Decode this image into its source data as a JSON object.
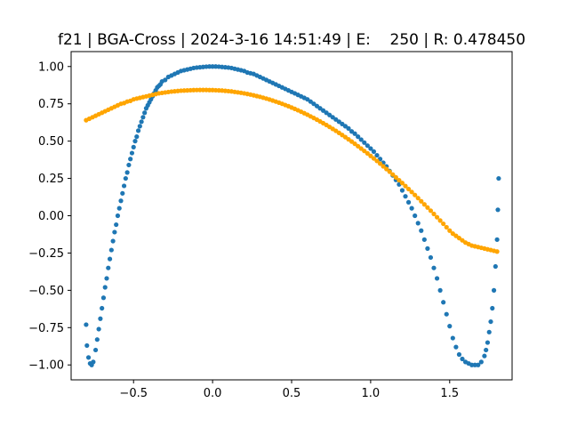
{
  "chart_data": {
    "type": "scatter",
    "title": "f21 | BGA-Cross | 2024-3-16 14:51:49 | E:    250 | R: 0.478450",
    "xlabel": "",
    "ylabel": "",
    "xlim": [
      -0.895,
      1.895
    ],
    "ylim": [
      -1.1,
      1.1
    ],
    "grid": false,
    "legend": "none",
    "x_ticks": [
      -0.5,
      0.0,
      0.5,
      1.0,
      1.5
    ],
    "x_tick_labels": [
      "−0.5",
      "0.0",
      "0.5",
      "1.0",
      "1.5"
    ],
    "y_ticks": [
      -1.0,
      -0.75,
      -0.5,
      -0.25,
      0.0,
      0.25,
      0.5,
      0.75,
      1.0
    ],
    "y_tick_labels": [
      "−1.00",
      "−0.75",
      "−0.50",
      "−0.25",
      "0.00",
      "0.25",
      "0.50",
      "0.75",
      "1.00"
    ],
    "series": [
      {
        "color": "#1f77b4",
        "marker": "dot",
        "points": [
          [
            -0.8,
            -0.73
          ],
          [
            -0.795,
            -0.87
          ],
          [
            -0.785,
            -0.95
          ],
          [
            -0.775,
            -0.99
          ],
          [
            -0.765,
            -1.0
          ],
          [
            -0.755,
            -0.98
          ],
          [
            -0.74,
            -0.9
          ],
          [
            -0.73,
            -0.83
          ],
          [
            -0.72,
            -0.76
          ],
          [
            -0.71,
            -0.69
          ],
          [
            -0.7,
            -0.62
          ],
          [
            -0.69,
            -0.55
          ],
          [
            -0.68,
            -0.48
          ],
          [
            -0.67,
            -0.42
          ],
          [
            -0.66,
            -0.35
          ],
          [
            -0.65,
            -0.29
          ],
          [
            -0.64,
            -0.23
          ],
          [
            -0.63,
            -0.17
          ],
          [
            -0.62,
            -0.11
          ],
          [
            -0.61,
            -0.06
          ],
          [
            -0.6,
            0.0
          ],
          [
            -0.59,
            0.05
          ],
          [
            -0.58,
            0.1
          ],
          [
            -0.57,
            0.15
          ],
          [
            -0.56,
            0.2
          ],
          [
            -0.55,
            0.25
          ],
          [
            -0.54,
            0.29
          ],
          [
            -0.53,
            0.34
          ],
          [
            -0.52,
            0.38
          ],
          [
            -0.51,
            0.42
          ],
          [
            -0.5,
            0.46
          ],
          [
            -0.49,
            0.5
          ],
          [
            -0.48,
            0.53
          ],
          [
            -0.47,
            0.57
          ],
          [
            -0.46,
            0.6
          ],
          [
            -0.45,
            0.63
          ],
          [
            -0.44,
            0.66
          ],
          [
            -0.43,
            0.69
          ],
          [
            -0.42,
            0.72
          ],
          [
            -0.41,
            0.74
          ],
          [
            -0.4,
            0.76
          ],
          [
            -0.39,
            0.78
          ],
          [
            -0.38,
            0.8
          ],
          [
            -0.37,
            0.82
          ],
          [
            -0.36,
            0.84
          ],
          [
            -0.35,
            0.86
          ],
          [
            -0.34,
            0.87
          ],
          [
            -0.33,
            0.88
          ],
          [
            -0.32,
            0.9
          ],
          [
            -0.3,
            0.91
          ],
          [
            -0.28,
            0.93
          ],
          [
            -0.26,
            0.94
          ],
          [
            -0.24,
            0.95
          ],
          [
            -0.22,
            0.96
          ],
          [
            -0.2,
            0.97
          ],
          [
            -0.18,
            0.975
          ],
          [
            -0.16,
            0.98
          ],
          [
            -0.14,
            0.985
          ],
          [
            -0.12,
            0.99
          ],
          [
            -0.1,
            0.993
          ],
          [
            -0.08,
            0.995
          ],
          [
            -0.06,
            0.997
          ],
          [
            -0.04,
            0.999
          ],
          [
            -0.02,
            1.0
          ],
          [
            0.0,
            1.0
          ],
          [
            0.02,
            1.0
          ],
          [
            0.04,
            0.999
          ],
          [
            0.06,
            0.997
          ],
          [
            0.08,
            0.995
          ],
          [
            0.1,
            0.993
          ],
          [
            0.12,
            0.99
          ],
          [
            0.14,
            0.985
          ],
          [
            0.16,
            0.98
          ],
          [
            0.18,
            0.975
          ],
          [
            0.2,
            0.97
          ],
          [
            0.22,
            0.96
          ],
          [
            0.24,
            0.955
          ],
          [
            0.26,
            0.95
          ],
          [
            0.28,
            0.94
          ],
          [
            0.3,
            0.93
          ],
          [
            0.32,
            0.92
          ],
          [
            0.34,
            0.91
          ],
          [
            0.36,
            0.9
          ],
          [
            0.38,
            0.89
          ],
          [
            0.4,
            0.88
          ],
          [
            0.42,
            0.87
          ],
          [
            0.44,
            0.86
          ],
          [
            0.46,
            0.85
          ],
          [
            0.48,
            0.84
          ],
          [
            0.5,
            0.83
          ],
          [
            0.52,
            0.82
          ],
          [
            0.54,
            0.81
          ],
          [
            0.56,
            0.8
          ],
          [
            0.58,
            0.79
          ],
          [
            0.6,
            0.78
          ],
          [
            0.62,
            0.765
          ],
          [
            0.64,
            0.75
          ],
          [
            0.66,
            0.735
          ],
          [
            0.68,
            0.72
          ],
          [
            0.7,
            0.705
          ],
          [
            0.72,
            0.69
          ],
          [
            0.74,
            0.675
          ],
          [
            0.76,
            0.66
          ],
          [
            0.78,
            0.645
          ],
          [
            0.8,
            0.63
          ],
          [
            0.82,
            0.615
          ],
          [
            0.84,
            0.6
          ],
          [
            0.86,
            0.585
          ],
          [
            0.88,
            0.565
          ],
          [
            0.9,
            0.55
          ],
          [
            0.92,
            0.53
          ],
          [
            0.94,
            0.51
          ],
          [
            0.96,
            0.49
          ],
          [
            0.98,
            0.47
          ],
          [
            1.0,
            0.45
          ],
          [
            1.02,
            0.43
          ],
          [
            1.04,
            0.405
          ],
          [
            1.06,
            0.38
          ],
          [
            1.08,
            0.355
          ],
          [
            1.1,
            0.33
          ],
          [
            1.12,
            0.3
          ],
          [
            1.14,
            0.27
          ],
          [
            1.16,
            0.24
          ],
          [
            1.18,
            0.21
          ],
          [
            1.2,
            0.17
          ],
          [
            1.22,
            0.13
          ],
          [
            1.24,
            0.09
          ],
          [
            1.26,
            0.05
          ],
          [
            1.28,
            0.0
          ],
          [
            1.3,
            -0.05
          ],
          [
            1.32,
            -0.1
          ],
          [
            1.34,
            -0.16
          ],
          [
            1.36,
            -0.22
          ],
          [
            1.38,
            -0.28
          ],
          [
            1.4,
            -0.35
          ],
          [
            1.42,
            -0.42
          ],
          [
            1.44,
            -0.5
          ],
          [
            1.46,
            -0.58
          ],
          [
            1.48,
            -0.66
          ],
          [
            1.5,
            -0.74
          ],
          [
            1.52,
            -0.82
          ],
          [
            1.54,
            -0.88
          ],
          [
            1.56,
            -0.93
          ],
          [
            1.58,
            -0.96
          ],
          [
            1.6,
            -0.98
          ],
          [
            1.62,
            -0.99
          ],
          [
            1.64,
            -1.0
          ],
          [
            1.66,
            -1.0
          ],
          [
            1.68,
            -1.0
          ],
          [
            1.7,
            -0.98
          ],
          [
            1.72,
            -0.94
          ],
          [
            1.73,
            -0.9
          ],
          [
            1.74,
            -0.85
          ],
          [
            1.75,
            -0.78
          ],
          [
            1.76,
            -0.71
          ],
          [
            1.77,
            -0.62
          ],
          [
            1.78,
            -0.5
          ],
          [
            1.79,
            -0.34
          ],
          [
            1.8,
            -0.16
          ],
          [
            1.805,
            0.04
          ],
          [
            1.81,
            0.25
          ]
        ]
      },
      {
        "color": "#ffa500",
        "marker": "dot",
        "points": [
          [
            -0.8,
            0.64
          ],
          [
            -0.78,
            0.65
          ],
          [
            -0.76,
            0.66
          ],
          [
            -0.74,
            0.67
          ],
          [
            -0.72,
            0.68
          ],
          [
            -0.7,
            0.69
          ],
          [
            -0.68,
            0.7
          ],
          [
            -0.66,
            0.71
          ],
          [
            -0.64,
            0.72
          ],
          [
            -0.62,
            0.73
          ],
          [
            -0.6,
            0.74
          ],
          [
            -0.58,
            0.75
          ],
          [
            -0.56,
            0.755
          ],
          [
            -0.54,
            0.765
          ],
          [
            -0.52,
            0.77
          ],
          [
            -0.5,
            0.78
          ],
          [
            -0.48,
            0.785
          ],
          [
            -0.46,
            0.79
          ],
          [
            -0.44,
            0.795
          ],
          [
            -0.42,
            0.8
          ],
          [
            -0.4,
            0.805
          ],
          [
            -0.38,
            0.81
          ],
          [
            -0.36,
            0.815
          ],
          [
            -0.34,
            0.82
          ],
          [
            -0.32,
            0.823
          ],
          [
            -0.3,
            0.826
          ],
          [
            -0.28,
            0.829
          ],
          [
            -0.26,
            0.832
          ],
          [
            -0.24,
            0.834
          ],
          [
            -0.22,
            0.836
          ],
          [
            -0.2,
            0.838
          ],
          [
            -0.18,
            0.839
          ],
          [
            -0.16,
            0.84
          ],
          [
            -0.14,
            0.841
          ],
          [
            -0.12,
            0.842
          ],
          [
            -0.1,
            0.8425
          ],
          [
            -0.08,
            0.843
          ],
          [
            -0.06,
            0.843
          ],
          [
            -0.04,
            0.843
          ],
          [
            -0.02,
            0.842
          ],
          [
            0.0,
            0.842
          ],
          [
            0.02,
            0.841
          ],
          [
            0.04,
            0.84
          ],
          [
            0.06,
            0.839
          ],
          [
            0.08,
            0.837
          ],
          [
            0.1,
            0.835
          ],
          [
            0.12,
            0.833
          ],
          [
            0.14,
            0.83
          ],
          [
            0.16,
            0.827
          ],
          [
            0.18,
            0.824
          ],
          [
            0.2,
            0.82
          ],
          [
            0.22,
            0.816
          ],
          [
            0.24,
            0.812
          ],
          [
            0.26,
            0.807
          ],
          [
            0.28,
            0.802
          ],
          [
            0.3,
            0.797
          ],
          [
            0.32,
            0.791
          ],
          [
            0.34,
            0.785
          ],
          [
            0.36,
            0.779
          ],
          [
            0.38,
            0.772
          ],
          [
            0.4,
            0.765
          ],
          [
            0.42,
            0.758
          ],
          [
            0.44,
            0.75
          ],
          [
            0.46,
            0.742
          ],
          [
            0.48,
            0.734
          ],
          [
            0.5,
            0.725
          ],
          [
            0.52,
            0.716
          ],
          [
            0.54,
            0.707
          ],
          [
            0.56,
            0.697
          ],
          [
            0.58,
            0.687
          ],
          [
            0.6,
            0.677
          ],
          [
            0.62,
            0.666
          ],
          [
            0.64,
            0.655
          ],
          [
            0.66,
            0.644
          ],
          [
            0.68,
            0.632
          ],
          [
            0.7,
            0.62
          ],
          [
            0.72,
            0.608
          ],
          [
            0.74,
            0.595
          ],
          [
            0.76,
            0.582
          ],
          [
            0.78,
            0.569
          ],
          [
            0.8,
            0.555
          ],
          [
            0.82,
            0.541
          ],
          [
            0.84,
            0.527
          ],
          [
            0.86,
            0.512
          ],
          [
            0.88,
            0.497
          ],
          [
            0.9,
            0.482
          ],
          [
            0.92,
            0.466
          ],
          [
            0.94,
            0.45
          ],
          [
            0.96,
            0.434
          ],
          [
            0.98,
            0.418
          ],
          [
            1.0,
            0.401
          ],
          [
            1.02,
            0.384
          ],
          [
            1.04,
            0.367
          ],
          [
            1.06,
            0.349
          ],
          [
            1.08,
            0.331
          ],
          [
            1.1,
            0.313
          ],
          [
            1.12,
            0.295
          ],
          [
            1.14,
            0.276
          ],
          [
            1.16,
            0.257
          ],
          [
            1.18,
            0.238
          ],
          [
            1.2,
            0.219
          ],
          [
            1.22,
            0.199
          ],
          [
            1.24,
            0.179
          ],
          [
            1.26,
            0.159
          ],
          [
            1.28,
            0.139
          ],
          [
            1.3,
            0.118
          ],
          [
            1.32,
            0.097
          ],
          [
            1.34,
            0.076
          ],
          [
            1.36,
            0.055
          ],
          [
            1.38,
            0.034
          ],
          [
            1.4,
            0.012
          ],
          [
            1.42,
            -0.01
          ],
          [
            1.44,
            -0.032
          ],
          [
            1.46,
            -0.054
          ],
          [
            1.48,
            -0.077
          ],
          [
            1.5,
            -0.1
          ],
          [
            1.52,
            -0.12
          ],
          [
            1.54,
            -0.135
          ],
          [
            1.56,
            -0.15
          ],
          [
            1.58,
            -0.165
          ],
          [
            1.6,
            -0.18
          ],
          [
            1.62,
            -0.19
          ],
          [
            1.64,
            -0.2
          ],
          [
            1.66,
            -0.205
          ],
          [
            1.68,
            -0.21
          ],
          [
            1.7,
            -0.215
          ],
          [
            1.72,
            -0.22
          ],
          [
            1.74,
            -0.225
          ],
          [
            1.76,
            -0.23
          ],
          [
            1.78,
            -0.235
          ],
          [
            1.8,
            -0.24
          ]
        ]
      }
    ]
  }
}
